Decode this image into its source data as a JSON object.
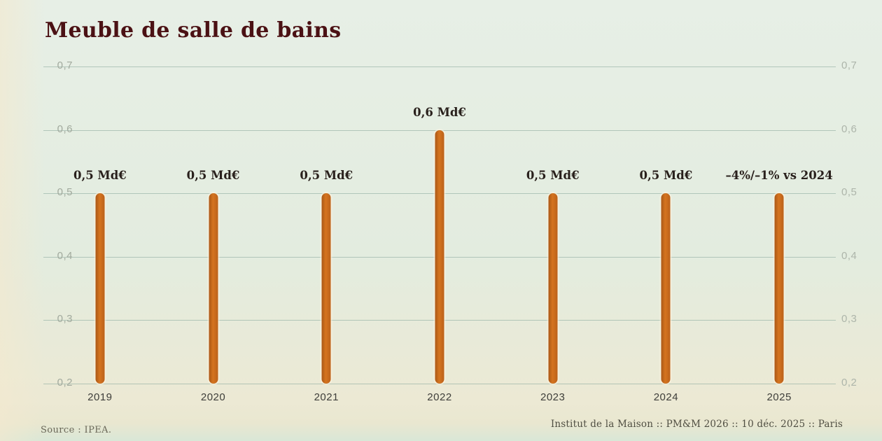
{
  "title": "Meuble de salle de bains",
  "footer": {
    "source": "Source : IPEA.",
    "credits": "Institut de la Maison :: PM&M 2026 :: 10 déc. 2025 :: Paris"
  },
  "colors": {
    "background": "#e3ecdf",
    "bar": "#c4671f",
    "title": "#4b1114",
    "gridline": "#9db5ab",
    "tick_label": "#a2aa9e",
    "year_label": "#3e3e3a",
    "value_label": "#29201c"
  },
  "chart_data": {
    "type": "bar",
    "title": "Meuble de salle de bains",
    "categories": [
      "2019",
      "2020",
      "2021",
      "2022",
      "2023",
      "2024",
      "2025"
    ],
    "values": [
      0.5,
      0.5,
      0.5,
      0.6,
      0.5,
      0.5,
      0.5
    ],
    "bar_labels": [
      "0,5 Md€",
      "0,5 Md€",
      "0,5 Md€",
      "0,6 Md€",
      "0,5 Md€",
      "0,5 Md€",
      "–4%/–1% vs 2024"
    ],
    "unit": "Md€",
    "xlabel": "",
    "ylabel": "",
    "ylim": [
      0.2,
      0.7
    ],
    "baseline": 0.2,
    "yticks": [
      "0,7",
      "0,6",
      "0,5",
      "0,4",
      "0,3",
      "0,2"
    ],
    "grid": true,
    "axis_label_sides": "both",
    "legend": false
  }
}
